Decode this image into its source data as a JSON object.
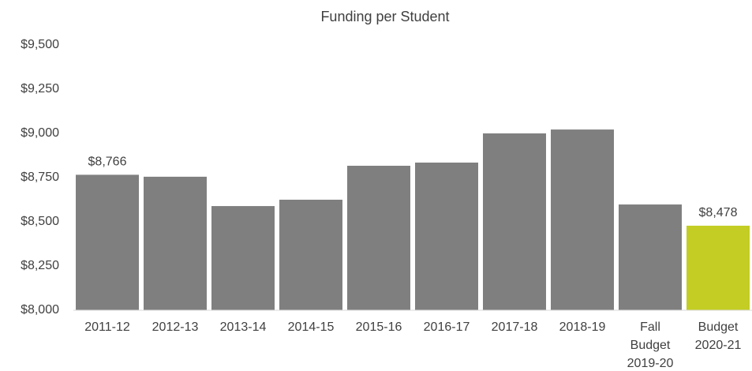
{
  "chart_data": {
    "type": "bar",
    "title": "Funding per Student",
    "categories": [
      "2011-12",
      "2012-13",
      "2013-14",
      "2014-15",
      "2015-16",
      "2016-17",
      "2017-18",
      "2018-19",
      "Fall Budget 2019-20",
      "Budget 2020-21"
    ],
    "values": [
      8766,
      8755,
      8589,
      8625,
      8817,
      8835,
      9000,
      9022,
      8598,
      8478
    ],
    "value_labels": [
      "$8,766",
      null,
      null,
      null,
      null,
      null,
      null,
      null,
      null,
      "$8,478"
    ],
    "colors": [
      "#7f7f7f",
      "#7f7f7f",
      "#7f7f7f",
      "#7f7f7f",
      "#7f7f7f",
      "#7f7f7f",
      "#7f7f7f",
      "#7f7f7f",
      "#7f7f7f",
      "#c3cd23"
    ],
    "ylim": [
      8000,
      9500
    ],
    "yticks": [
      {
        "value": 8000,
        "label": "$8,000"
      },
      {
        "value": 8250,
        "label": "$8,250"
      },
      {
        "value": 8500,
        "label": "$8,500"
      },
      {
        "value": 8750,
        "label": "$8,750"
      },
      {
        "value": 9000,
        "label": "$9,000"
      },
      {
        "value": 9250,
        "label": "$9,250"
      },
      {
        "value": 9500,
        "label": "$9,500"
      }
    ],
    "grid": false
  }
}
